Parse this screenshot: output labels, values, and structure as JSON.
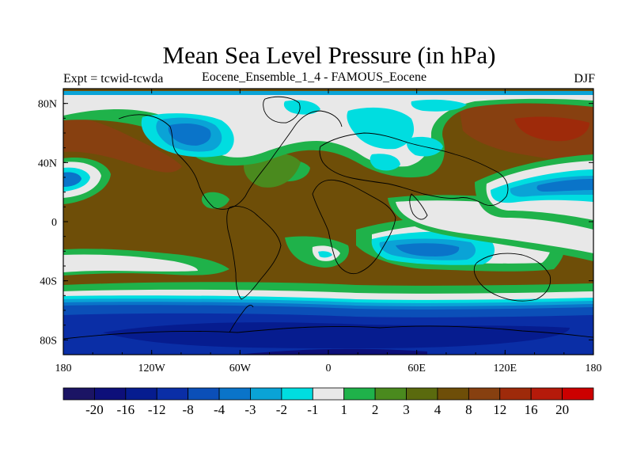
{
  "title": "Mean Sea Level Pressure (in hPa)",
  "left_string": "Expt = tcwid-tcwda",
  "center_string": "Eocene_Ensemble_1_4 - FAMOUS_Eocene",
  "right_string": "DJF",
  "axes": {
    "lon_ticks": [
      "180",
      "120W",
      "60W",
      "0",
      "60E",
      "120E",
      "180"
    ],
    "lat_ticks": [
      "80N",
      "40N",
      "0",
      "40S",
      "80S"
    ],
    "lon_values": [
      -180,
      -120,
      -60,
      0,
      60,
      120,
      180
    ],
    "lat_values": [
      80,
      40,
      0,
      -40,
      -80
    ],
    "lon_range": [
      -180,
      180
    ],
    "lat_range": [
      -90,
      90
    ]
  },
  "colorbar": {
    "colors": [
      "#1b1464",
      "#0d0f7a",
      "#061c8f",
      "#0a2ea6",
      "#0b4fb8",
      "#0a74c9",
      "#0aa3d6",
      "#00dde0",
      "#e8e8e8",
      "#1fb24a",
      "#4a8a1e",
      "#5a6a0e",
      "#6e4e08",
      "#874010",
      "#9e2a0a",
      "#b51a0a",
      "#cc0000"
    ],
    "labels": [
      "-20",
      "-16",
      "-12",
      "-8",
      "-4",
      "-3",
      "-2",
      "-1",
      "1",
      "2",
      "3",
      "4",
      "8",
      "12",
      "16",
      "20"
    ]
  }
}
